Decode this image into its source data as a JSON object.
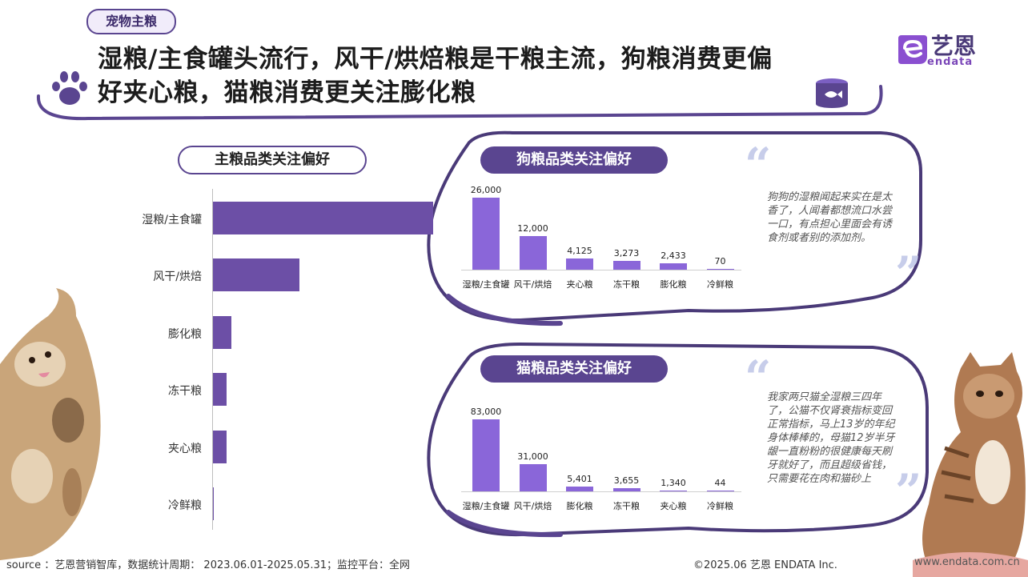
{
  "header": {
    "tag": "宠物主粮",
    "title_line1": "湿粮/主食罐头流行，风干/烘焙粮是干粮主流，狗粮消费更偏",
    "title_line2": "好夹心粮，猫粮消费更关注膨化粮",
    "logo_cn": "艺恩",
    "logo_en": "endata",
    "icons": [
      "paw-icon",
      "fish-can-icon",
      "endata-logo-icon"
    ]
  },
  "left_section": {
    "title": "主粮品类关注偏好"
  },
  "dog_panel": {
    "title": "狗粮品类关注偏好",
    "quote": "狗狗的湿粮闻起来实在是太香了，人闻着都想流口水尝一口，有点担心里面会有诱食剂或者别的添加剂。"
  },
  "cat_panel": {
    "title": "猫粮品类关注偏好",
    "quote": "我家两只猫全湿粮三四年了，公猫不仅肾衰指标变回正常指标，马上13岁的年纪身体棒棒的，母猫12岁半牙龈一直粉粉的很健康每天刷牙就好了，而且超级省钱，只需要花在肉和猫砂上"
  },
  "footer": {
    "source": "source ：艺恩营销智库，数据统计周期： 2023.06.01-2025.05.31；监控平台：全网",
    "copyright": "©2025.06  艺恩 ENDATA Inc.",
    "url": "www.endata.com.cn"
  },
  "colors": {
    "primary": "#5a4590",
    "bar": "#6c4fa6",
    "panel_bar": "#8a66d9",
    "quote": "#c7cdea"
  },
  "chart_data": [
    {
      "type": "bar",
      "orientation": "horizontal",
      "categories": [
        "湿粮/主食罐",
        "风干/烘焙",
        "膨化粮",
        "冻干粮",
        "夹心粮",
        "冷鲜粮"
      ],
      "values": [
        109000,
        43000,
        9056,
        6928,
        6558,
        114
      ],
      "xlim": [
        0,
        270000
      ]
    },
    {
      "type": "bar",
      "categories": [
        "湿粮/主食罐",
        "风干/烘焙",
        "夹心粮",
        "冻干粮",
        "膨化粮",
        "冷鲜粮"
      ],
      "values": [
        26000,
        12000,
        4125,
        3273,
        2433,
        70
      ],
      "data_labels": [
        "26,000",
        "12,000",
        "4,125",
        "3,273",
        "2,433",
        "70"
      ],
      "ylim": [
        0,
        26000
      ]
    },
    {
      "type": "bar",
      "categories": [
        "湿粮/主食罐",
        "风干/烘焙",
        "膨化粮",
        "冻干粮",
        "夹心粮",
        "冷鲜粮"
      ],
      "values": [
        83000,
        31000,
        5401,
        3655,
        1340,
        44
      ],
      "data_labels": [
        "83,000",
        "31,000",
        "5,401",
        "3,655",
        "1,340",
        "44"
      ],
      "ylim": [
        0,
        83000
      ]
    }
  ]
}
